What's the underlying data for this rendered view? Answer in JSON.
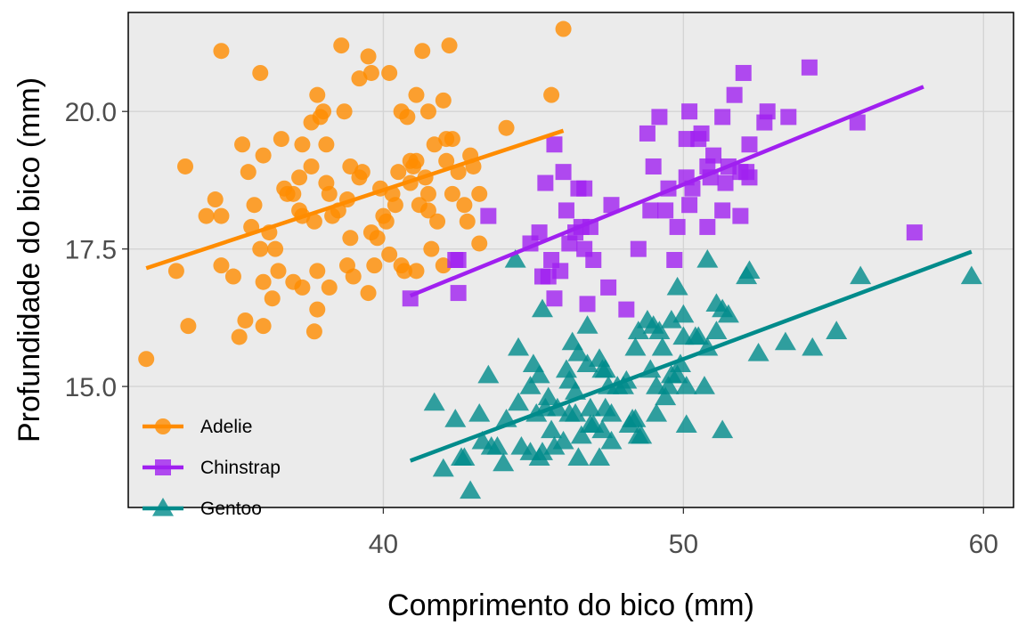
{
  "chart_data": {
    "type": "scatter",
    "title": "",
    "xlabel": "Comprimento do bico (mm)",
    "ylabel": "Profundidade do bico (mm)",
    "xlim": [
      31.5,
      61
    ],
    "ylim": [
      12.8,
      21.8
    ],
    "x_ticks": [
      40,
      50,
      60
    ],
    "x_tick_labels": [
      "40",
      "50",
      "60"
    ],
    "y_ticks": [
      15,
      17.5,
      20
    ],
    "y_tick_labels": [
      "15.0",
      "17.5",
      "20.0"
    ],
    "grid": true,
    "background": "#ebebeb",
    "legend_position": "bottom-left",
    "series": [
      {
        "name": "Adelie",
        "marker": "circle",
        "color": "#ff8c00",
        "trend": [
          [
            32.1,
            17.15
          ],
          [
            46.0,
            19.65
          ]
        ],
        "points": [
          [
            46.0,
            21.5
          ],
          [
            34.6,
            21.1
          ],
          [
            38.6,
            21.2
          ],
          [
            39.5,
            21.0
          ],
          [
            41.3,
            21.1
          ],
          [
            42.2,
            21.2
          ],
          [
            40.2,
            20.7
          ],
          [
            39.2,
            20.6
          ],
          [
            39.6,
            20.7
          ],
          [
            35.9,
            20.7
          ],
          [
            37.8,
            20.3
          ],
          [
            41.1,
            20.3
          ],
          [
            42.0,
            20.2
          ],
          [
            45.6,
            20.3
          ],
          [
            40.6,
            20.0
          ],
          [
            41.5,
            20.0
          ],
          [
            38.0,
            20.0
          ],
          [
            38.7,
            20.0
          ],
          [
            37.6,
            19.8
          ],
          [
            37.9,
            19.9
          ],
          [
            44.1,
            19.7
          ],
          [
            40.8,
            19.9
          ],
          [
            36.6,
            19.5
          ],
          [
            35.3,
            19.4
          ],
          [
            37.3,
            19.4
          ],
          [
            38.1,
            19.4
          ],
          [
            42.1,
            19.5
          ],
          [
            42.3,
            19.5
          ],
          [
            42.9,
            19.2
          ],
          [
            41.7,
            19.4
          ],
          [
            36.0,
            19.2
          ],
          [
            37.6,
            19.0
          ],
          [
            38.9,
            19.0
          ],
          [
            40.9,
            19.1
          ],
          [
            41.0,
            19.0
          ],
          [
            41.1,
            19.1
          ],
          [
            35.5,
            18.9
          ],
          [
            33.4,
            19.0
          ],
          [
            39.3,
            18.9
          ],
          [
            40.5,
            18.9
          ],
          [
            42.1,
            19.1
          ],
          [
            37.2,
            18.8
          ],
          [
            38.1,
            18.7
          ],
          [
            40.3,
            18.5
          ],
          [
            41.4,
            18.8
          ],
          [
            42.5,
            18.9
          ],
          [
            43.0,
            19.0
          ],
          [
            37.0,
            18.5
          ],
          [
            36.7,
            18.6
          ],
          [
            38.2,
            18.5
          ],
          [
            39.2,
            18.8
          ],
          [
            40.9,
            18.7
          ],
          [
            35.7,
            18.3
          ],
          [
            38.8,
            18.4
          ],
          [
            40.4,
            18.3
          ],
          [
            41.2,
            18.3
          ],
          [
            42.3,
            18.5
          ],
          [
            43.2,
            18.5
          ],
          [
            37.3,
            18.1
          ],
          [
            38.3,
            18.1
          ],
          [
            40.0,
            18.1
          ],
          [
            41.5,
            18.2
          ],
          [
            42.7,
            18.3
          ],
          [
            34.4,
            18.4
          ],
          [
            34.1,
            18.1
          ],
          [
            34.6,
            18.1
          ],
          [
            35.6,
            17.9
          ],
          [
            36.2,
            17.8
          ],
          [
            37.7,
            18.0
          ],
          [
            39.6,
            17.8
          ],
          [
            40.1,
            18.0
          ],
          [
            41.8,
            18.0
          ],
          [
            42.8,
            18.0
          ],
          [
            35.9,
            17.5
          ],
          [
            36.4,
            17.5
          ],
          [
            38.9,
            17.7
          ],
          [
            39.8,
            17.7
          ],
          [
            40.2,
            17.4
          ],
          [
            41.6,
            17.5
          ],
          [
            43.2,
            17.6
          ],
          [
            33.1,
            17.1
          ],
          [
            34.6,
            17.2
          ],
          [
            35.0,
            17.0
          ],
          [
            36.5,
            17.1
          ],
          [
            37.8,
            17.1
          ],
          [
            39.0,
            17.0
          ],
          [
            40.6,
            17.2
          ],
          [
            41.1,
            17.1
          ],
          [
            42.0,
            17.2
          ],
          [
            37.3,
            16.8
          ],
          [
            38.2,
            16.8
          ],
          [
            39.5,
            16.7
          ],
          [
            40.7,
            17.1
          ],
          [
            36.3,
            16.6
          ],
          [
            37.0,
            16.9
          ],
          [
            37.8,
            16.4
          ],
          [
            35.4,
            16.2
          ],
          [
            36.0,
            16.9
          ],
          [
            33.5,
            16.1
          ],
          [
            36.0,
            16.1
          ],
          [
            35.2,
            15.9
          ],
          [
            37.7,
            16.0
          ],
          [
            32.1,
            15.5
          ],
          [
            38.8,
            17.2
          ],
          [
            39.7,
            17.2
          ],
          [
            41.5,
            18.5
          ],
          [
            38.5,
            18.2
          ],
          [
            37.2,
            18.2
          ],
          [
            39.9,
            18.6
          ],
          [
            36.8,
            18.5
          ]
        ]
      },
      {
        "name": "Chinstrap",
        "marker": "square",
        "color": "#a020f0",
        "trend": [
          [
            40.9,
            16.65
          ],
          [
            58.0,
            20.45
          ]
        ],
        "points": [
          [
            52.0,
            20.7
          ],
          [
            54.2,
            20.8
          ],
          [
            51.7,
            20.3
          ],
          [
            50.2,
            20.0
          ],
          [
            52.8,
            20.0
          ],
          [
            53.5,
            19.9
          ],
          [
            49.2,
            19.9
          ],
          [
            51.3,
            19.9
          ],
          [
            55.8,
            19.8
          ],
          [
            48.8,
            19.6
          ],
          [
            50.1,
            19.5
          ],
          [
            50.5,
            19.5
          ],
          [
            50.6,
            19.6
          ],
          [
            52.2,
            19.4
          ],
          [
            51.0,
            19.2
          ],
          [
            49.0,
            19.0
          ],
          [
            50.8,
            19.0
          ],
          [
            51.5,
            19.0
          ],
          [
            52.1,
            18.9
          ],
          [
            46.0,
            18.9
          ],
          [
            45.7,
            19.4
          ],
          [
            50.1,
            18.8
          ],
          [
            50.9,
            18.8
          ],
          [
            51.9,
            18.9
          ],
          [
            45.4,
            18.7
          ],
          [
            46.5,
            18.6
          ],
          [
            49.5,
            18.6
          ],
          [
            50.3,
            18.6
          ],
          [
            51.4,
            18.7
          ],
          [
            52.2,
            18.8
          ],
          [
            47.6,
            18.3
          ],
          [
            50.2,
            18.3
          ],
          [
            46.1,
            18.2
          ],
          [
            48.9,
            18.2
          ],
          [
            49.4,
            18.2
          ],
          [
            51.3,
            18.2
          ],
          [
            51.9,
            18.1
          ],
          [
            43.5,
            18.1
          ],
          [
            46.6,
            17.9
          ],
          [
            46.9,
            17.9
          ],
          [
            49.8,
            17.9
          ],
          [
            50.8,
            17.9
          ],
          [
            57.7,
            17.8
          ],
          [
            45.2,
            17.8
          ],
          [
            46.4,
            17.8
          ],
          [
            44.9,
            17.6
          ],
          [
            46.7,
            17.5
          ],
          [
            48.5,
            17.5
          ],
          [
            42.4,
            17.3
          ],
          [
            45.6,
            17.3
          ],
          [
            47.0,
            17.3
          ],
          [
            49.7,
            17.3
          ],
          [
            45.5,
            17.0
          ],
          [
            45.3,
            17.0
          ],
          [
            42.5,
            16.7
          ],
          [
            45.7,
            16.6
          ],
          [
            46.8,
            16.5
          ],
          [
            47.5,
            16.8
          ],
          [
            40.9,
            16.6
          ],
          [
            48.1,
            16.4
          ],
          [
            45.9,
            17.1
          ],
          [
            46.2,
            17.6
          ],
          [
            46.7,
            18.6
          ],
          [
            52.7,
            19.8
          ],
          [
            42.5,
            17.3
          ]
        ]
      },
      {
        "name": "Gentoo",
        "marker": "triangle",
        "color": "#008b8b",
        "trend": [
          [
            40.9,
            13.65
          ],
          [
            59.6,
            17.45
          ]
        ],
        "points": [
          [
            59.6,
            17.0
          ],
          [
            55.9,
            17.0
          ],
          [
            55.1,
            16.0
          ],
          [
            54.3,
            15.7
          ],
          [
            53.4,
            15.8
          ],
          [
            52.5,
            15.6
          ],
          [
            52.1,
            17.0
          ],
          [
            52.2,
            17.1
          ],
          [
            51.1,
            16.5
          ],
          [
            51.5,
            16.3
          ],
          [
            51.3,
            16.4
          ],
          [
            50.8,
            17.3
          ],
          [
            49.8,
            16.8
          ],
          [
            50.0,
            16.3
          ],
          [
            50.4,
            15.9
          ],
          [
            50.0,
            15.9
          ],
          [
            49.6,
            16.2
          ],
          [
            49.2,
            16.0
          ],
          [
            49.0,
            16.1
          ],
          [
            48.5,
            16.0
          ],
          [
            48.8,
            16.2
          ],
          [
            48.4,
            15.7
          ],
          [
            49.1,
            15.0
          ],
          [
            49.8,
            15.2
          ],
          [
            50.5,
            15.9
          ],
          [
            50.7,
            15.0
          ],
          [
            50.1,
            15.0
          ],
          [
            49.9,
            15.4
          ],
          [
            49.3,
            15.7
          ],
          [
            47.8,
            15.0
          ],
          [
            48.1,
            15.1
          ],
          [
            47.5,
            15.0
          ],
          [
            47.2,
            15.5
          ],
          [
            46.8,
            16.1
          ],
          [
            46.5,
            15.6
          ],
          [
            46.1,
            15.3
          ],
          [
            46.2,
            15.1
          ],
          [
            45.8,
            14.6
          ],
          [
            45.3,
            16.4
          ],
          [
            44.4,
            17.3
          ],
          [
            44.5,
            15.7
          ],
          [
            45.0,
            15.4
          ],
          [
            45.2,
            15.2
          ],
          [
            44.9,
            13.8
          ],
          [
            44.6,
            13.9
          ],
          [
            45.1,
            14.5
          ],
          [
            45.5,
            14.8
          ],
          [
            45.6,
            14.2
          ],
          [
            46.0,
            14.0
          ],
          [
            46.2,
            14.5
          ],
          [
            46.4,
            14.9
          ],
          [
            46.5,
            13.7
          ],
          [
            46.9,
            14.6
          ],
          [
            47.0,
            14.3
          ],
          [
            47.3,
            14.2
          ],
          [
            47.4,
            14.6
          ],
          [
            47.6,
            14.5
          ],
          [
            48.2,
            14.3
          ],
          [
            48.6,
            14.1
          ],
          [
            48.5,
            14.1
          ],
          [
            49.1,
            14.5
          ],
          [
            49.4,
            14.8
          ],
          [
            50.1,
            14.3
          ],
          [
            51.3,
            14.2
          ],
          [
            43.5,
            15.2
          ],
          [
            43.3,
            14.0
          ],
          [
            43.2,
            14.5
          ],
          [
            42.9,
            13.1
          ],
          [
            42.7,
            13.7
          ],
          [
            42.4,
            14.4
          ],
          [
            42.0,
            13.5
          ],
          [
            41.7,
            14.7
          ],
          [
            42.6,
            13.7
          ],
          [
            43.6,
            13.9
          ],
          [
            44.0,
            13.6
          ],
          [
            43.8,
            13.9
          ],
          [
            44.1,
            14.4
          ],
          [
            44.9,
            15.0
          ],
          [
            45.3,
            13.8
          ],
          [
            45.2,
            13.7
          ],
          [
            45.7,
            13.9
          ],
          [
            46.4,
            14.5
          ],
          [
            46.6,
            14.1
          ],
          [
            46.9,
            14.3
          ],
          [
            47.2,
            13.7
          ],
          [
            47.6,
            14.0
          ],
          [
            48.0,
            15.0
          ],
          [
            48.3,
            14.4
          ],
          [
            48.9,
            15.3
          ],
          [
            49.5,
            15.0
          ],
          [
            50.8,
            15.7
          ],
          [
            51.1,
            16.0
          ],
          [
            47.3,
            15.3
          ],
          [
            46.3,
            15.8
          ],
          [
            44.5,
            14.7
          ],
          [
            45.4,
            14.6
          ],
          [
            46.8,
            15.4
          ],
          [
            47.4,
            15.3
          ],
          [
            48.4,
            14.4
          ],
          [
            49.6,
            15.2
          ]
        ]
      }
    ]
  }
}
